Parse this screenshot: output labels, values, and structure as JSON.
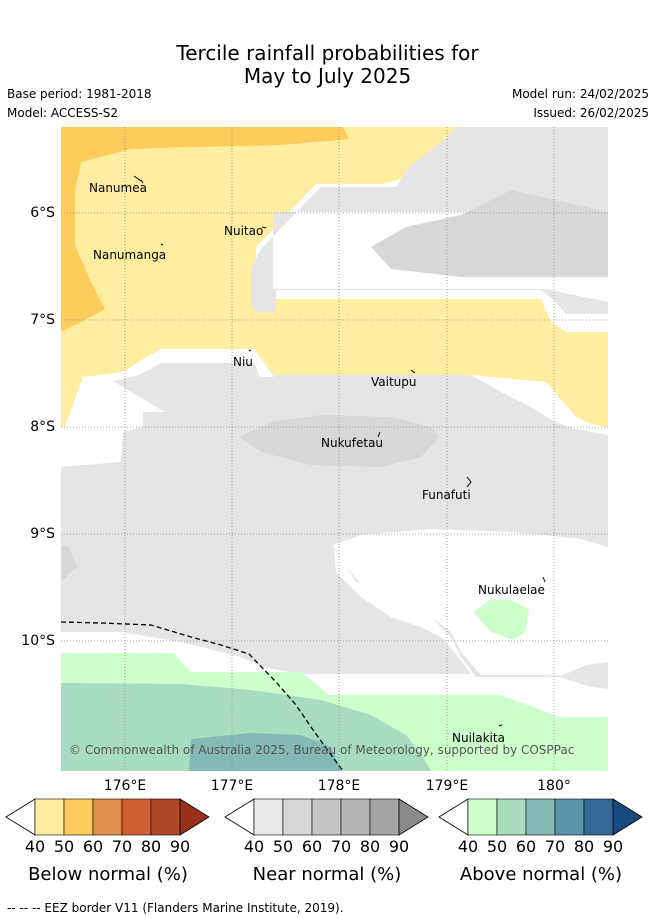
{
  "title_line1": "Tercile rainfall probabilities for",
  "title_line2": "May to July 2025",
  "base_period": "Base period: 1981-2018",
  "model": "Model: ACCESS-S2",
  "model_run": "Model run: 24/02/2025",
  "issued": "Issued: 26/02/2025",
  "lat_labels": [
    "6°S",
    "7°S",
    "8°S",
    "9°S",
    "10°S"
  ],
  "lon_labels": [
    "176°E",
    "177°E",
    "178°E",
    "179°E",
    "180°"
  ],
  "places": {
    "nanumea": "Nanumea",
    "nuitao": "Nuitao",
    "nanumanga": "Nanumanga",
    "niu": "Niu",
    "vaitupu": "Vaitupu",
    "nukufetau": "Nukufetau",
    "funafuti": "Funafuti",
    "nukulaelae": "Nukulaelae",
    "nuilakita": "Nuilakita"
  },
  "copyright": "© Commonwealth of Australia 2025, Bureau of Meteorology, supported by COSPPac",
  "colorbars": {
    "ticks": [
      "40",
      "50",
      "60",
      "70",
      "80",
      "90"
    ],
    "below": {
      "title": "Below normal (%)",
      "colors": [
        "#ffeda0",
        "#fecc5c",
        "#e0904a",
        "#d06030",
        "#b04828",
        "#98301c"
      ]
    },
    "near": {
      "title": "Near normal (%)",
      "colors": [
        "#e8e8e8",
        "#d7d7d7",
        "#c4c4c4",
        "#b4b4b4",
        "#a4a4a4",
        "#8a8a8a"
      ]
    },
    "above": {
      "title": "Above normal (%)",
      "colors": [
        "#ccffcc",
        "#a8dcc0",
        "#84bab4",
        "#5a94a8",
        "#346898",
        "#164a80"
      ]
    }
  },
  "legend_footer": "--  --  -- EEZ border V11 (Flanders Marine Institute, 2019)."
}
